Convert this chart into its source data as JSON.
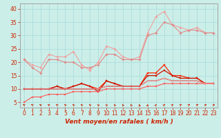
{
  "xlabel": "Vent moyen/en rafales ( km/h )",
  "bg_color": "#cceee8",
  "grid_color": "#aadddd",
  "x": [
    0,
    1,
    2,
    3,
    4,
    5,
    6,
    7,
    8,
    9,
    10,
    11,
    12,
    13,
    14,
    15,
    16,
    17,
    18,
    19,
    20,
    21,
    22,
    23
  ],
  "series": [
    {
      "y": [
        21,
        19,
        18,
        23,
        22,
        22,
        24,
        19,
        17,
        20,
        26,
        25,
        22,
        21,
        22,
        31,
        37,
        39,
        34,
        33,
        32,
        33,
        31,
        31
      ],
      "color": "#f0a0a0",
      "lw": 0.8,
      "marker": "D",
      "ms": 1.8
    },
    {
      "y": [
        21,
        18,
        16,
        21,
        21,
        20,
        20,
        18,
        18,
        19,
        23,
        23,
        21,
        21,
        21,
        30,
        31,
        35,
        34,
        31,
        32,
        32,
        31,
        31
      ],
      "color": "#e08888",
      "lw": 0.8,
      "marker": "D",
      "ms": 1.8
    },
    {
      "y": [
        10,
        10,
        10,
        10,
        11,
        10,
        11,
        12,
        11,
        10,
        13,
        12,
        11,
        11,
        11,
        16,
        16,
        19,
        15,
        15,
        14,
        14,
        12,
        12
      ],
      "color": "#ff2200",
      "lw": 0.9,
      "marker": "s",
      "ms": 2.0
    },
    {
      "y": [
        10,
        10,
        10,
        10,
        11,
        10,
        11,
        12,
        11,
        9,
        13,
        12,
        11,
        11,
        11,
        15,
        15,
        17,
        15,
        14,
        14,
        14,
        12,
        12
      ],
      "color": "#cc1100",
      "lw": 0.9,
      "marker": "s",
      "ms": 2.0
    },
    {
      "y": [
        10,
        10,
        10,
        10,
        10,
        10,
        10,
        10,
        10,
        10,
        11,
        11,
        11,
        11,
        11,
        13,
        13,
        14,
        13,
        13,
        13,
        13,
        12,
        12
      ],
      "color": "#990000",
      "lw": 0.9,
      "marker": null,
      "ms": 0
    },
    {
      "y": [
        5,
        7,
        7,
        8,
        8,
        8,
        9,
        9,
        9,
        9,
        10,
        10,
        10,
        10,
        10,
        11,
        11,
        12,
        12,
        12,
        12,
        12,
        12,
        12
      ],
      "color": "#ff5555",
      "lw": 0.8,
      "marker": "s",
      "ms": 1.8
    },
    {
      "y": [
        10,
        10,
        10,
        10,
        10,
        10,
        10,
        10,
        10,
        10,
        11,
        11,
        11,
        11,
        11,
        13,
        13,
        14,
        13,
        13,
        13,
        13,
        12,
        12
      ],
      "color": "#ffaaaa",
      "lw": 0.8,
      "marker": null,
      "ms": 0
    }
  ],
  "ylim": [
    3,
    42
  ],
  "xlim": [
    -0.5,
    23.5
  ],
  "yticks": [
    5,
    10,
    15,
    20,
    25,
    30,
    35,
    40
  ],
  "xticks": [
    0,
    1,
    2,
    3,
    4,
    5,
    6,
    7,
    8,
    9,
    10,
    11,
    12,
    13,
    14,
    15,
    16,
    17,
    18,
    19,
    20,
    21,
    22,
    23
  ],
  "tick_color": "#cc2200",
  "label_color": "#cc2200",
  "xlabel_fontsize": 6.5,
  "tick_fontsize": 5.5,
  "arrow_angles": [
    -50,
    -50,
    -45,
    -45,
    -45,
    -40,
    -40,
    -40,
    -35,
    -30,
    -30,
    -25,
    -20,
    -15,
    -10,
    10,
    30,
    40,
    45,
    50,
    60,
    70,
    80,
    85
  ]
}
